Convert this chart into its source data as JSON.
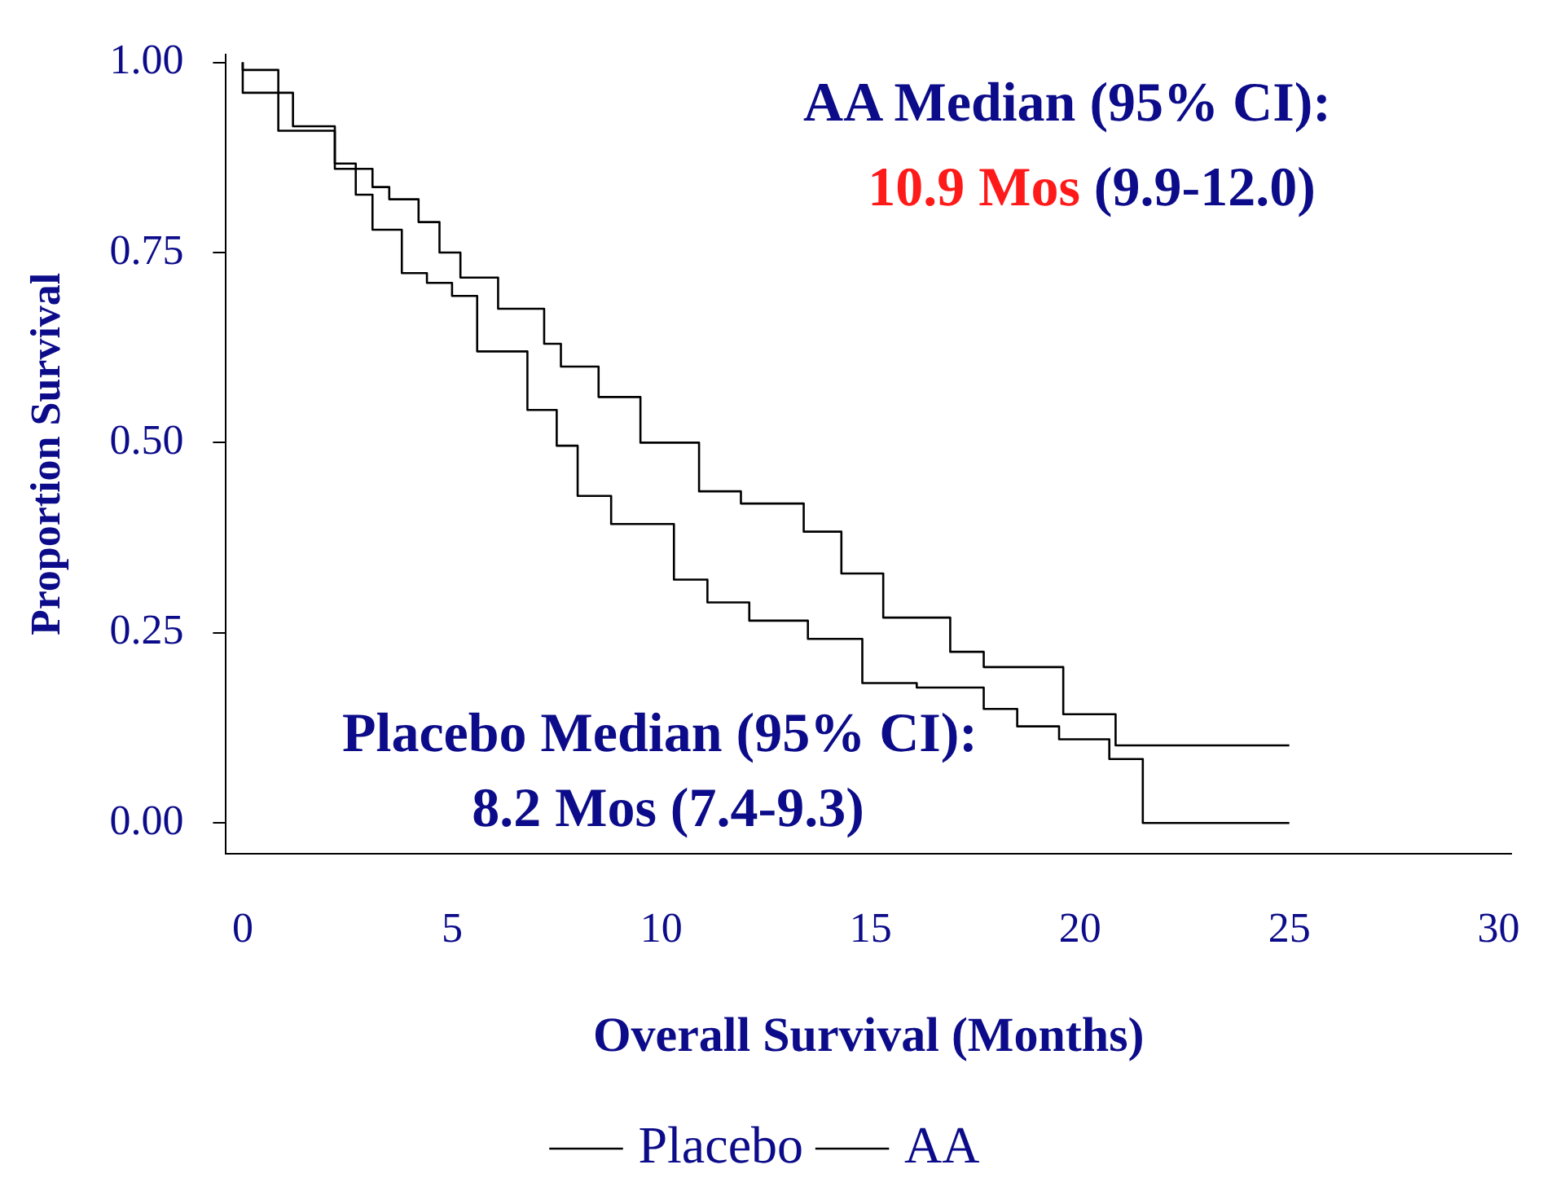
{
  "chart_data": {
    "type": "step",
    "xlabel": "Overall Survival (Months)",
    "ylabel": "Proportion Survival",
    "annotations": [
      "AA Median (95% CI):",
      "10.9 Mos",
      "(9.9-12.0)",
      "Placebo Median (95% CI):",
      "8.2 Mos (7.4-9.3)"
    ],
    "xlim": [
      -0.4,
      30.3
    ],
    "ylim": [
      -0.04,
      1.01
    ],
    "xticks": [
      0,
      5,
      10,
      15,
      20,
      25,
      30
    ],
    "yticks": [
      {
        "value": 0,
        "label": "0.00"
      },
      {
        "value": 0.25,
        "label": "0.25"
      },
      {
        "value": 0.5,
        "label": "0.50"
      },
      {
        "value": 0.75,
        "label": "0.75"
      },
      {
        "value": 1,
        "label": "1.00"
      }
    ],
    "legend": "bottom",
    "grid": false,
    "marker": "none",
    "line_style": "solid",
    "series": [
      {
        "name": "Placebo",
        "color": "#000000",
        "x": [
          0,
          1.2,
          2.2,
          2.7,
          3.1,
          3.8,
          4.4,
          5.0,
          5.6,
          6.8,
          7.5,
          8.0,
          8.8,
          10.3,
          11.1,
          12.1,
          13.5,
          14.8,
          16.1,
          17.7,
          18.5,
          19.5,
          20.7,
          21.5,
          25.0
        ],
        "values": [
          1,
          0.96,
          0.916,
          0.867,
          0.826,
          0.78,
          0.723,
          0.71,
          0.693,
          0.62,
          0.543,
          0.496,
          0.43,
          0.393,
          0.32,
          0.29,
          0.266,
          0.242,
          0.184,
          0.178,
          0.15,
          0.127,
          0.11,
          0.084,
          0
        ]
      },
      {
        "name": "AA",
        "color": "#000000",
        "x": [
          0,
          0.85,
          2.2,
          3.1,
          3.5,
          4.2,
          4.7,
          5.2,
          6.1,
          7.2,
          7.6,
          8.5,
          9.5,
          10.9,
          11.9,
          13.4,
          14.3,
          15.3,
          16.9,
          17.7,
          19.6,
          20.85,
          23.3,
          25.0
        ],
        "values": [
          1,
          0.99,
          0.91,
          0.86,
          0.836,
          0.82,
          0.79,
          0.75,
          0.717,
          0.676,
          0.63,
          0.6,
          0.56,
          0.5,
          0.436,
          0.42,
          0.383,
          0.328,
          0.27,
          0.225,
          0.205,
          0.143,
          0.102,
          0.102
        ]
      }
    ]
  }
}
